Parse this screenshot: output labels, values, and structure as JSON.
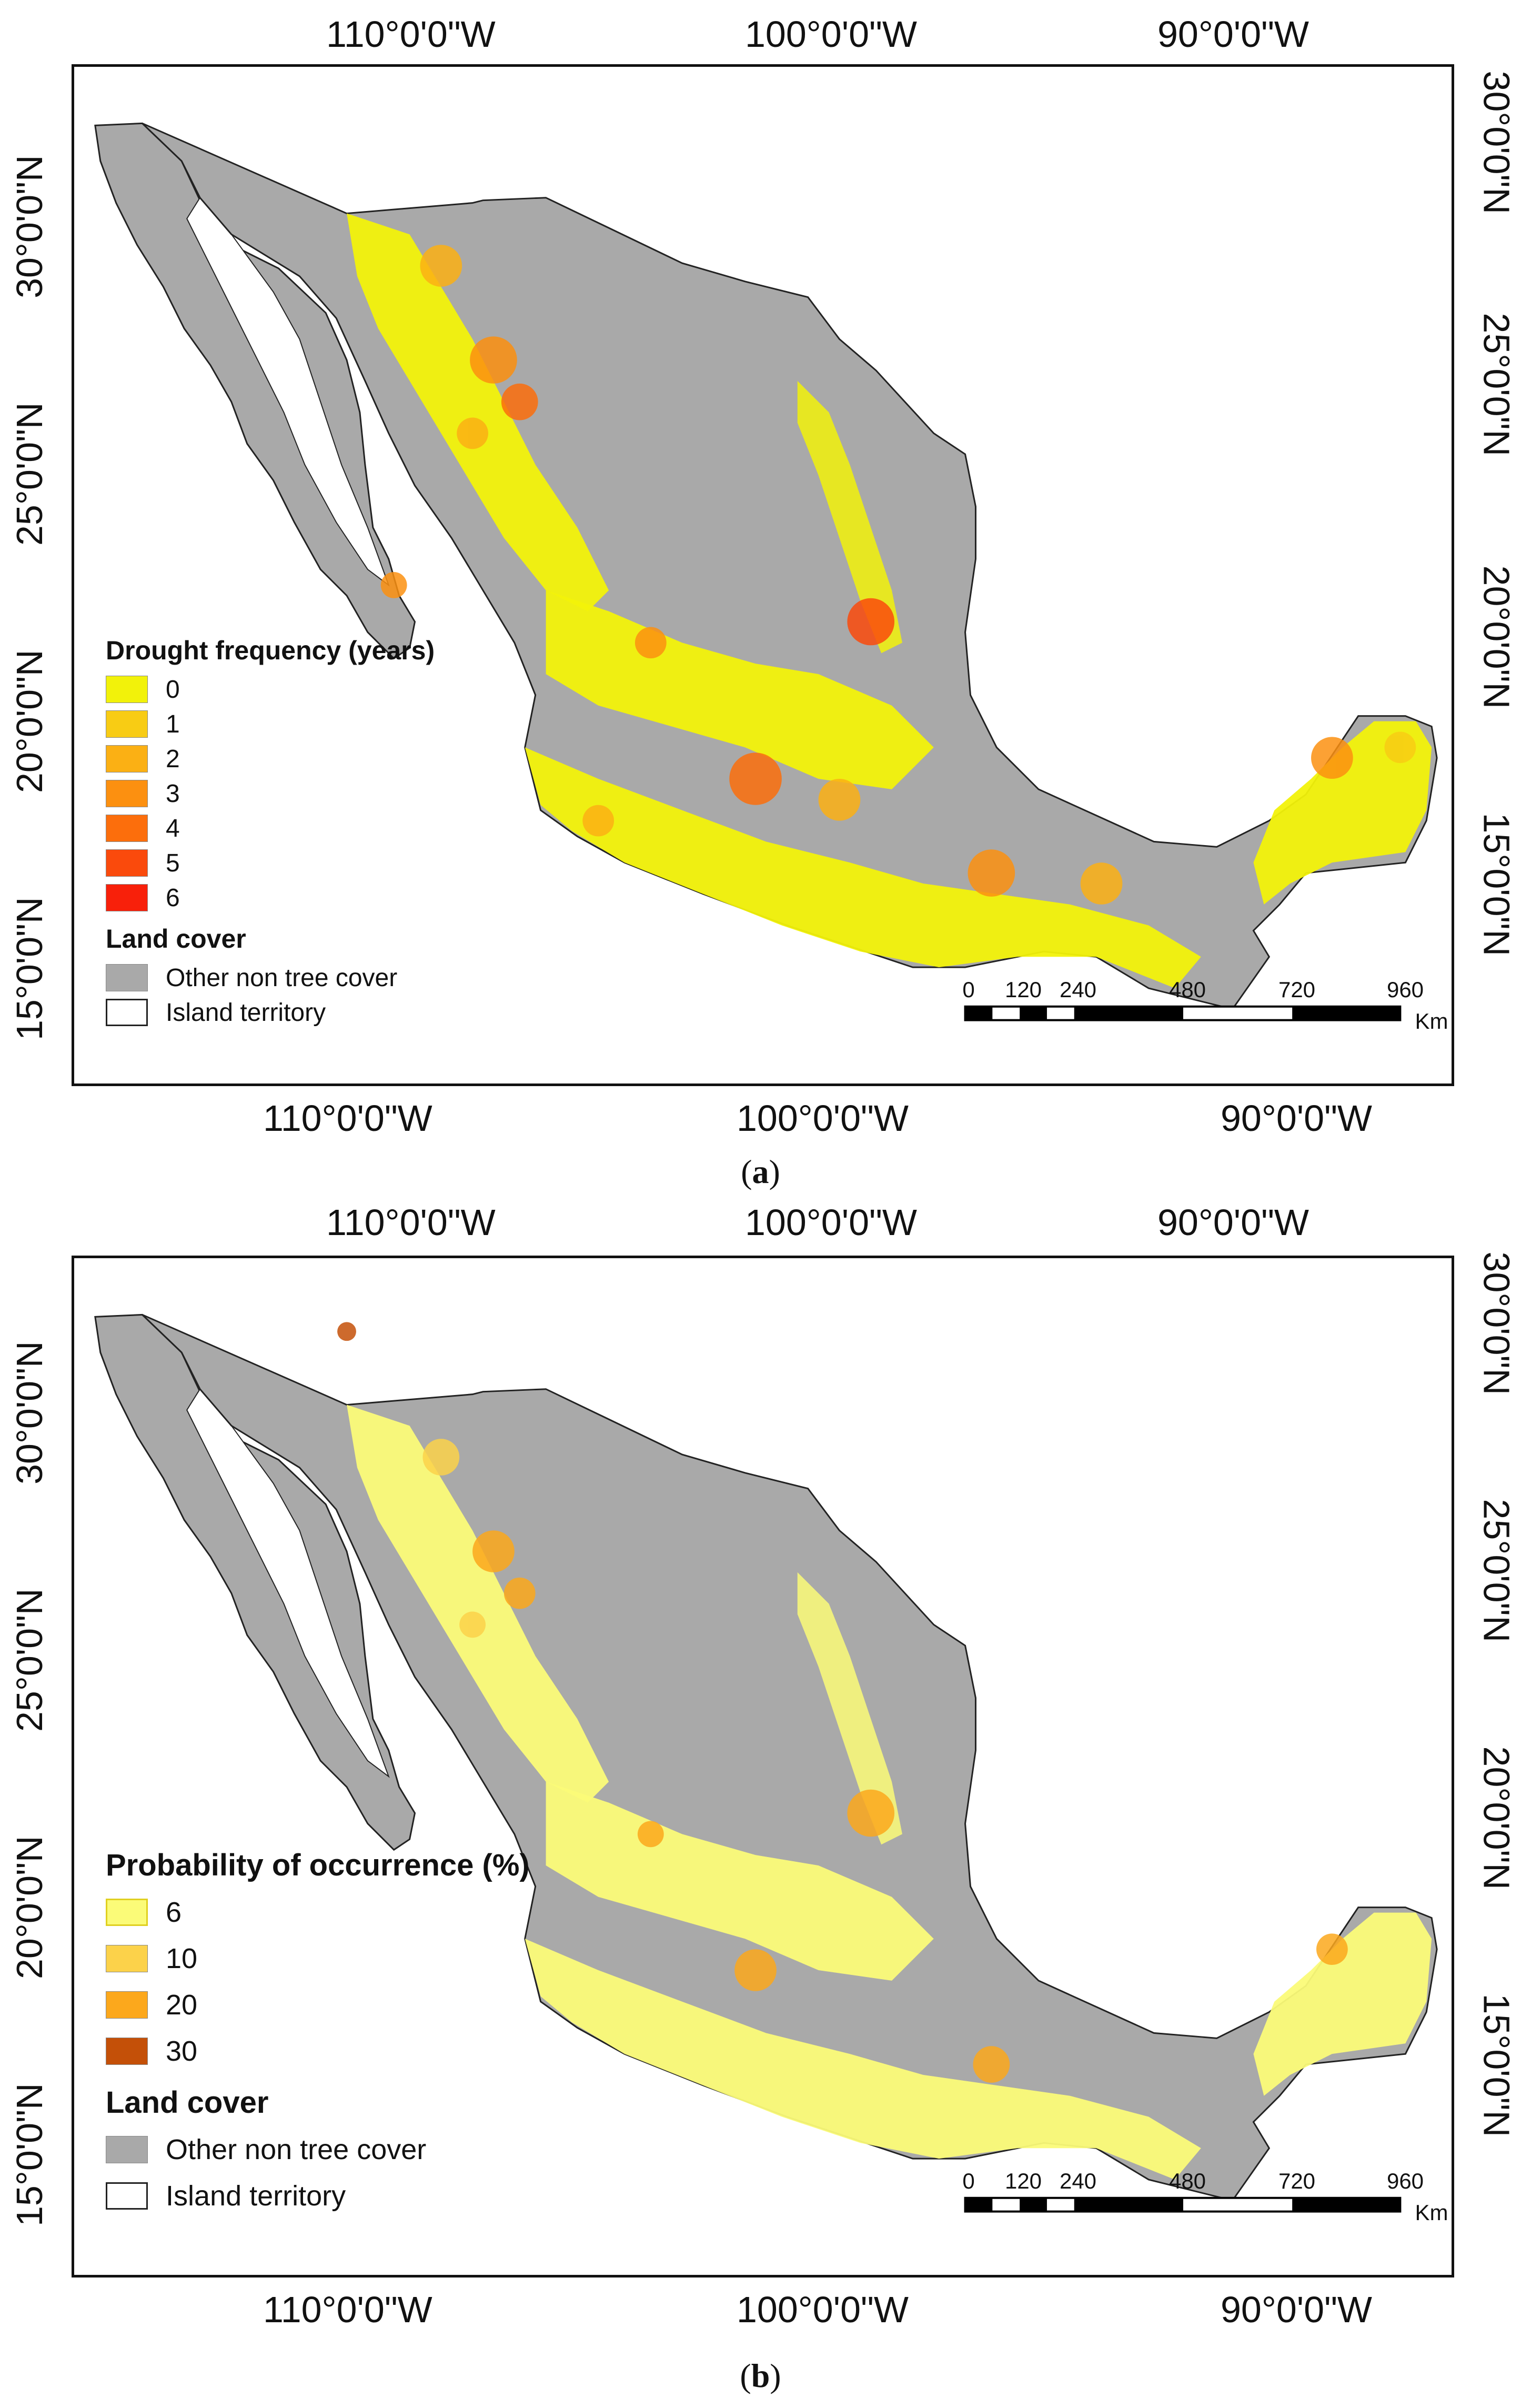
{
  "panels": [
    {
      "id": "a",
      "caption_open": "(",
      "caption_letter": "a",
      "caption_close": ")",
      "legend_title": "Drought frequency (years)",
      "legend_items": [
        {
          "label": "0",
          "color": "#f2f20a"
        },
        {
          "label": "1",
          "color": "#f8cc14"
        },
        {
          "label": "2",
          "color": "#fbb014"
        },
        {
          "label": "3",
          "color": "#fc9010"
        },
        {
          "label": "4",
          "color": "#fc6e0c"
        },
        {
          "label": "5",
          "color": "#fa4a0c"
        },
        {
          "label": "6",
          "color": "#f8200a"
        }
      ],
      "landcover_title": "Land cover",
      "landcover_items": [
        {
          "label": "Other non tree cover",
          "color": "#a9a9a9"
        },
        {
          "label": "Island territory",
          "color": "#ffffff"
        }
      ]
    },
    {
      "id": "b",
      "caption_open": "(",
      "caption_letter": "b",
      "caption_close": ")",
      "legend_title": "Probability of occurrence (%)",
      "legend_items": [
        {
          "label": "6",
          "color": "#fbfb78"
        },
        {
          "label": "10",
          "color": "#fcd24a"
        },
        {
          "label": "20",
          "color": "#fca81c"
        },
        {
          "label": "30",
          "color": "#c45008"
        }
      ],
      "landcover_title": "Land cover",
      "landcover_items": [
        {
          "label": "Other non tree cover",
          "color": "#a9a9a9"
        },
        {
          "label": "Island territory",
          "color": "#ffffff"
        }
      ]
    }
  ],
  "longitude_labels": [
    "110°0'0\"W",
    "100°0'0\"W",
    "90°0'0\"W"
  ],
  "latitude_labels": [
    "30°0'0\"N",
    "25°0'0\"N",
    "20°0'0\"N",
    "15°0'0\"N"
  ],
  "scale": {
    "ticks": [
      "0",
      "120",
      "240",
      "480",
      "720",
      "960"
    ],
    "unit": "Km"
  },
  "colors": {
    "land_gray": "#a9a9a9",
    "gulf_white": "#ffffff",
    "border": "#111111"
  }
}
